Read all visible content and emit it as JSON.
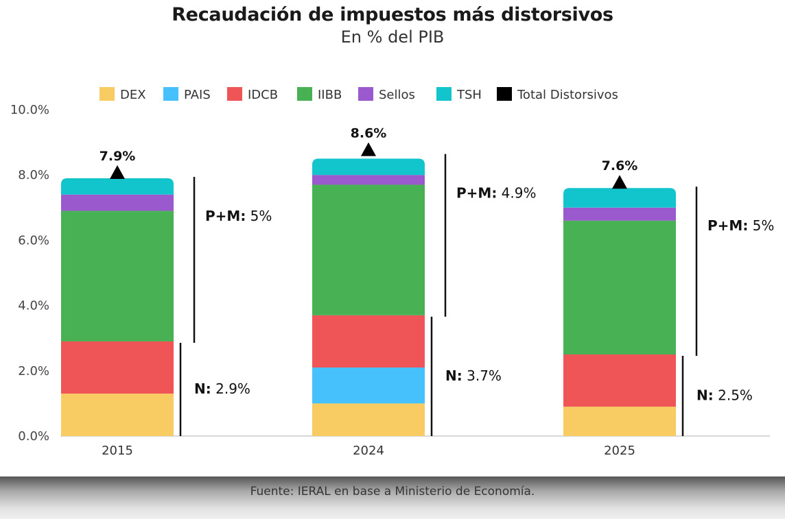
{
  "chart_data": {
    "type": "bar",
    "stacked": true,
    "title": "Recaudación de impuestos más distorsivos",
    "subtitle": "En % del PIB",
    "categories": [
      "2015",
      "2024",
      "2025"
    ],
    "ylim": [
      0,
      10
    ],
    "yticks": [
      "0.0%",
      "2.0%",
      "4.0%",
      "6.0%",
      "8.0%",
      "10.0%"
    ],
    "ytick_values": [
      0,
      2,
      4,
      6,
      8,
      10
    ],
    "series": [
      {
        "name": "DEX",
        "color": "#F8CB63",
        "values": [
          1.3,
          1.0,
          0.9
        ]
      },
      {
        "name": "PAIS",
        "color": "#47C1FB",
        "values": [
          0.0,
          1.1,
          0.0
        ]
      },
      {
        "name": "IDCB",
        "color": "#EF5556",
        "values": [
          1.6,
          1.6,
          1.6
        ]
      },
      {
        "name": "IIBB",
        "color": "#48B153",
        "values": [
          4.0,
          4.0,
          4.1
        ]
      },
      {
        "name": "Sellos",
        "color": "#9B59CE",
        "values": [
          0.5,
          0.3,
          0.4
        ]
      },
      {
        "name": "TSH",
        "color": "#12C4CB",
        "values": [
          0.5,
          0.5,
          0.6
        ]
      }
    ],
    "total_series": {
      "name": "Total Distorsivos",
      "color": "#000000",
      "values": [
        7.9,
        8.6,
        7.6
      ],
      "labels": [
        "7.9%",
        "8.6%",
        "7.6%"
      ]
    },
    "annotations": [
      {
        "pm_key": "P+M:",
        "pm_value": "5%",
        "n_key": "N:",
        "n_value": "2.9%",
        "n_top": 2.9,
        "bar_top": 7.9
      },
      {
        "pm_key": "P+M:",
        "pm_value": "4.9%",
        "n_key": "N:",
        "n_value": "3.7%",
        "n_top": 3.7,
        "bar_top": 8.6
      },
      {
        "pm_key": "P+M:",
        "pm_value": "5%",
        "n_key": "N:",
        "n_value": "2.5%",
        "n_top": 2.5,
        "bar_top": 7.6
      }
    ],
    "legend": "top"
  },
  "footer": {
    "source": "Fuente: IERAL en base a Ministerio de Economía."
  }
}
